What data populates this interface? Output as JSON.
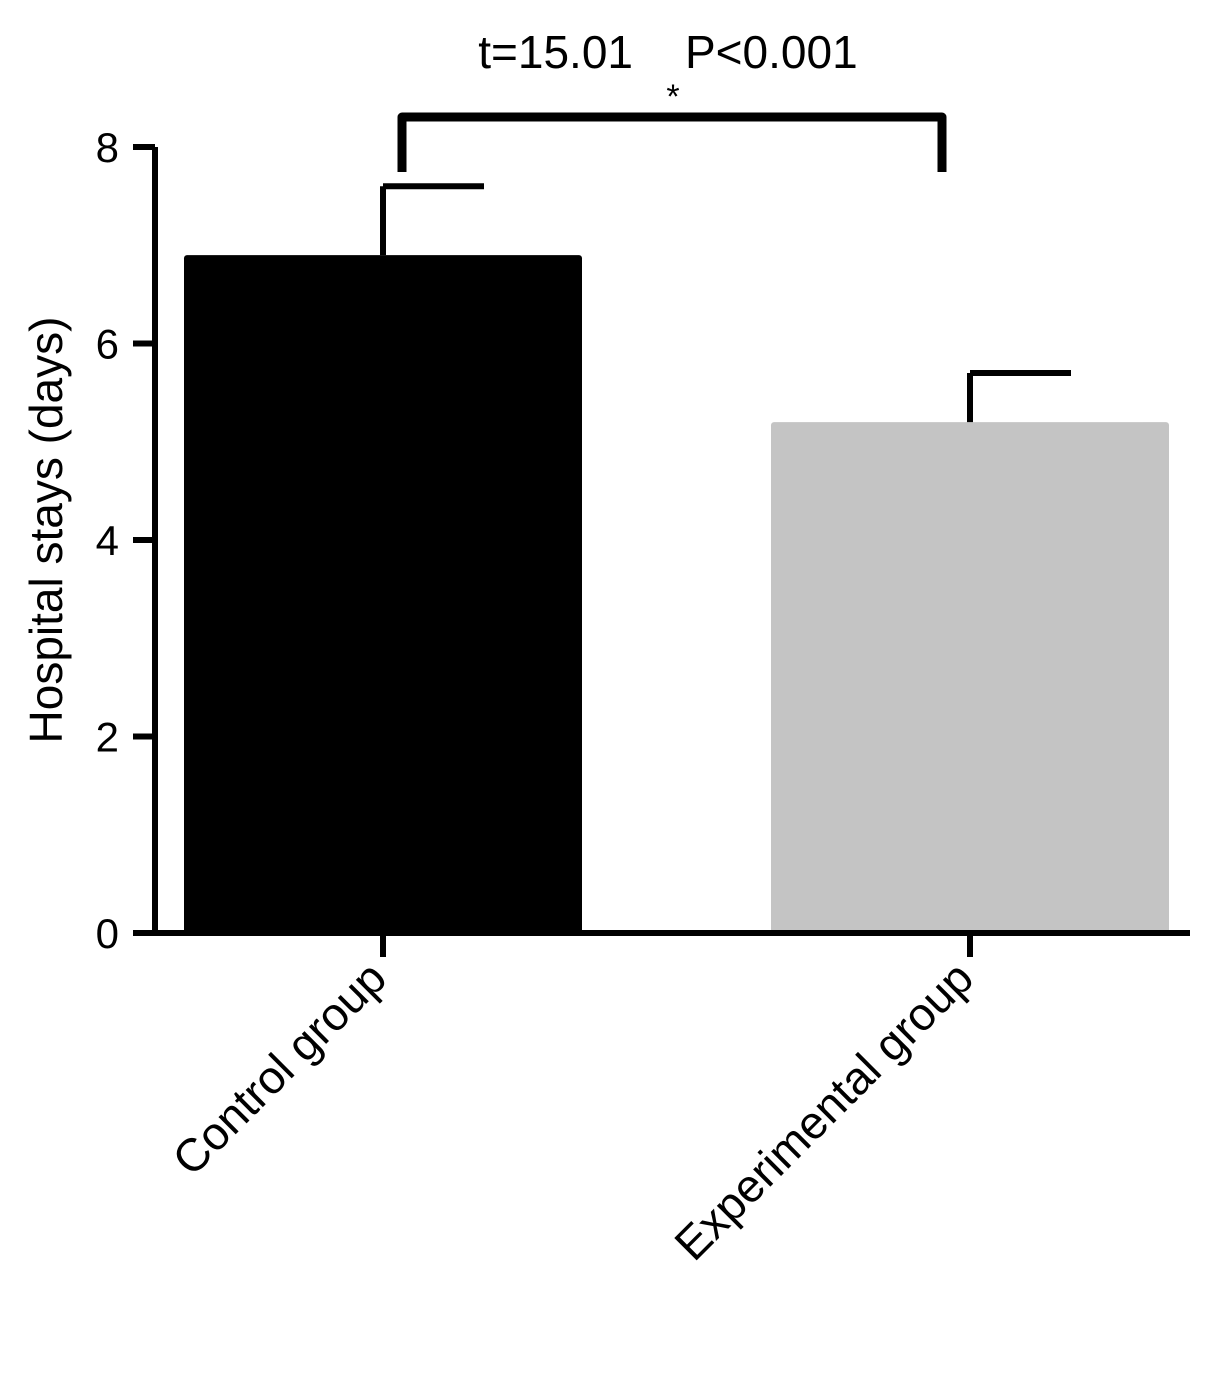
{
  "chart_data": {
    "type": "bar",
    "categories": [
      "Control group",
      "Experimental group"
    ],
    "series": [
      {
        "values": [
          6.9,
          5.2
        ],
        "error": [
          0.7,
          0.5
        ],
        "colors": [
          "#000000",
          "#c4c4c4"
        ]
      }
    ],
    "ylabel": "Hospital stays (days)",
    "xlabel": "",
    "ylim": [
      0,
      8
    ],
    "yticks": [
      0,
      2,
      4,
      6,
      8
    ],
    "grid": false,
    "annotations": {
      "statistic": "t=15.01",
      "p_value": "P<0.001",
      "significance_marker": "*",
      "comparison": [
        "Control group",
        "Experimental group"
      ]
    }
  }
}
